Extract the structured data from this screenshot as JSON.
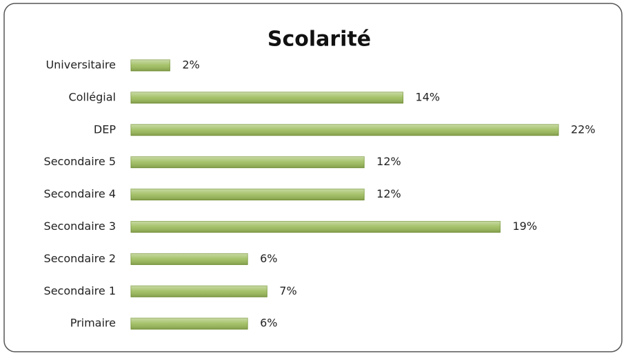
{
  "chart_data": {
    "type": "bar",
    "orientation": "horizontal",
    "title": "Scolarité",
    "categories": [
      "Universitaire",
      "Collégial",
      "DEP",
      "Secondaire 5",
      "Secondaire 4",
      "Secondaire 3",
      "Secondaire 2",
      "Secondaire 1",
      "Primaire"
    ],
    "values": [
      2,
      14,
      22,
      12,
      12,
      19,
      6,
      7,
      6
    ],
    "value_labels": [
      "2%",
      "14%",
      "22%",
      "12%",
      "12%",
      "19%",
      "6%",
      "7%",
      "6%"
    ],
    "color": "#9bbb59"
  }
}
